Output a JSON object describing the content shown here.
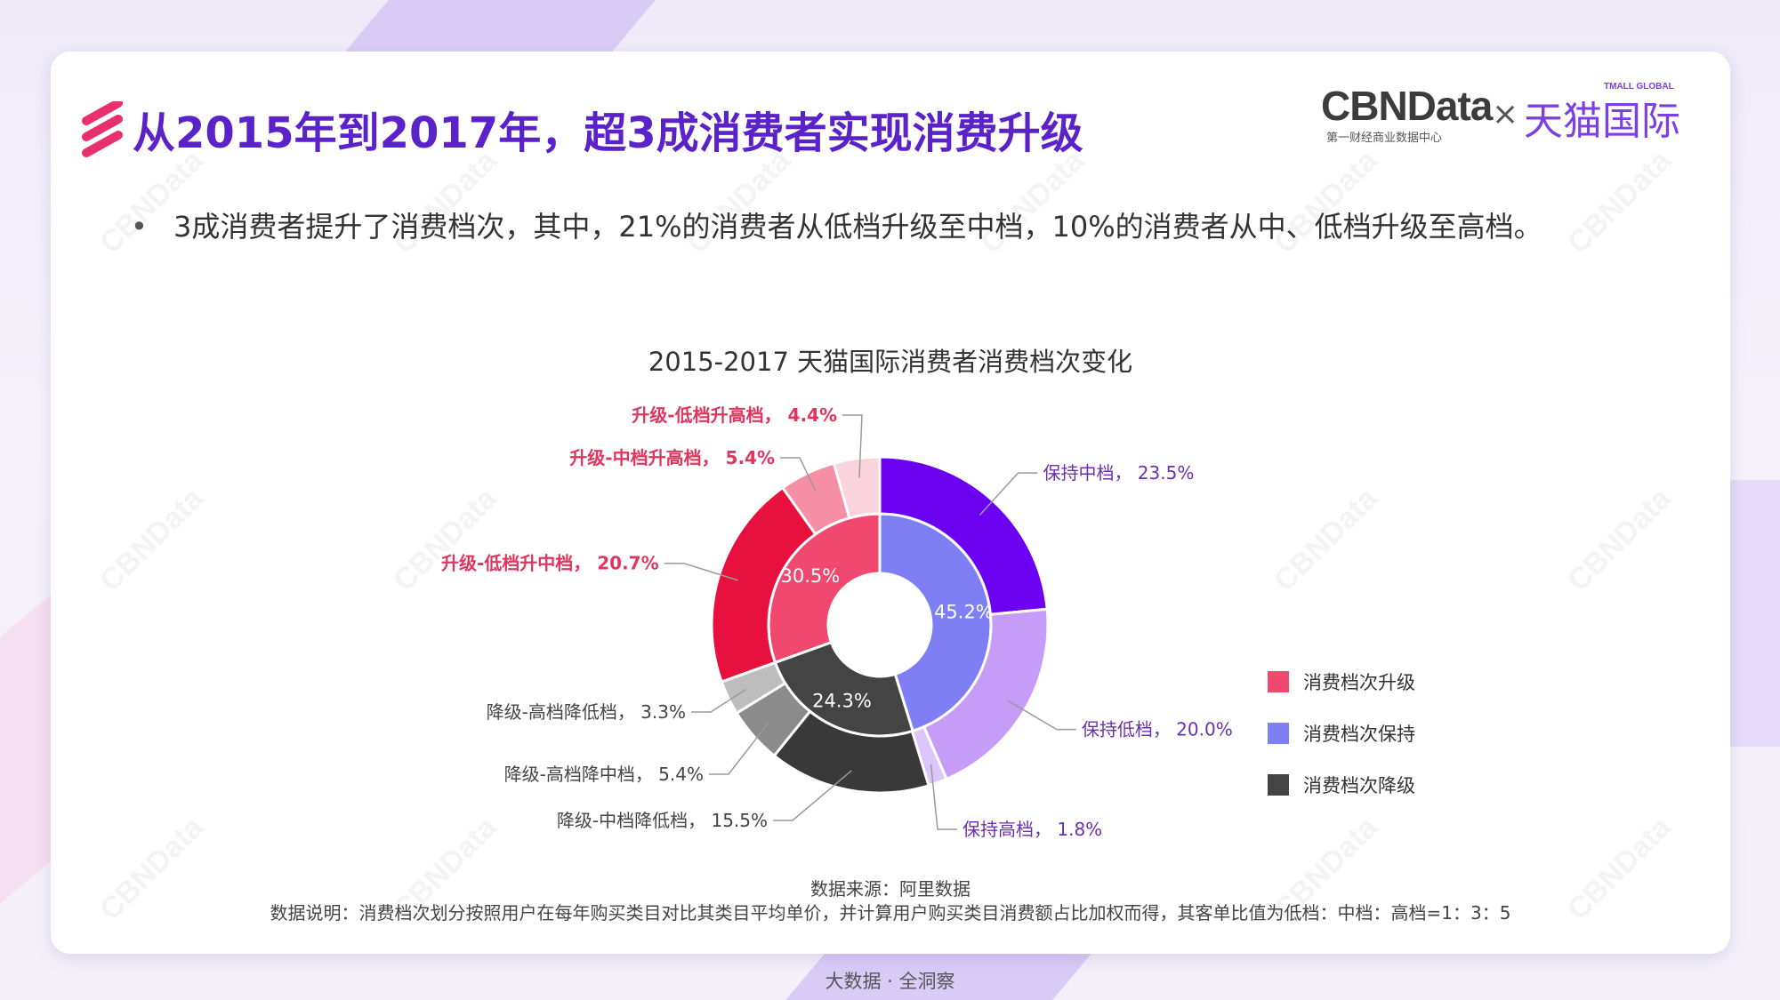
{
  "header": {
    "title": "从2015年到2017年，超3成消费者实现消费升级",
    "brand_cbn": "CBNData",
    "brand_cbn_sub": "第一财经商业数据中心",
    "brand_sep": "×",
    "brand_tmall": "天猫国际",
    "brand_tmall_sub": "TMALL GLOBAL"
  },
  "bullet": {
    "marker": "•",
    "text": "3成消费者提升了消费档次，其中，21%的消费者从低档升级至中档，10%的消费者从中、低档升级至高档。"
  },
  "chart_data": {
    "type": "nested-pie",
    "title": "2015-2017 天猫国际消费者消费档次变化",
    "inner_ring": [
      {
        "name": "消费档次升级",
        "value": 30.5,
        "label": "30.5%",
        "color": "#f0486f"
      },
      {
        "name": "消费档次保持",
        "value": 45.2,
        "label": "45.2%",
        "color": "#7f7ff5"
      },
      {
        "name": "消费档次降级",
        "value": 24.3,
        "label": "24.3%",
        "color": "#444444"
      }
    ],
    "outer_ring": [
      {
        "name": "保持中档",
        "value": 23.5,
        "label": "保持中档， 23.5%",
        "color": "#6c00f0",
        "label_color": "#6c2fb0",
        "group": "保持"
      },
      {
        "name": "保持低档",
        "value": 20.0,
        "label": "保持低档， 20.0%",
        "color": "#c69cf9",
        "label_color": "#6c2fb0",
        "group": "保持"
      },
      {
        "name": "保持高档",
        "value": 1.8,
        "label": "保持高档， 1.8%",
        "color": "#dcc5fb",
        "label_color": "#6c2fb0",
        "group": "保持"
      },
      {
        "name": "降级-中档降低档",
        "value": 15.5,
        "label": "降级-中档降低档， 15.5%",
        "color": "#393939",
        "label_color": "#444444",
        "group": "降级"
      },
      {
        "name": "降级-高档降中档",
        "value": 5.4,
        "label": "降级-高档降中档， 5.4%",
        "color": "#8b8b8b",
        "label_color": "#444444",
        "group": "降级"
      },
      {
        "name": "降级-高档降低档",
        "value": 3.3,
        "label": "降级-高档降低档， 3.3%",
        "color": "#bdbdbd",
        "label_color": "#444444",
        "group": "降级"
      },
      {
        "name": "升级-低档升中档",
        "value": 20.7,
        "label": "升级-低档升中档， 20.7%",
        "color": "#e8113d",
        "label_color": "#e0365e",
        "group": "升级"
      },
      {
        "name": "升级-中档升高档",
        "value": 5.4,
        "label": "升级-中档升高档， 5.4%",
        "color": "#f68ea6",
        "label_color": "#e0365e",
        "group": "升级"
      },
      {
        "name": "升级-低档升高档",
        "value": 4.4,
        "label": "升级-低档升高档， 4.4%",
        "color": "#fbd3dc",
        "label_color": "#e0365e",
        "group": "升级"
      }
    ],
    "legend": [
      {
        "label": "消费档次升级",
        "color": "#f0486f"
      },
      {
        "label": "消费档次保持",
        "color": "#7f7ff5"
      },
      {
        "label": "消费档次降级",
        "color": "#444444"
      }
    ]
  },
  "source": "数据来源：阿里数据",
  "note": "数据说明：消费档次划分按照用户在每年购买类目对比其类目平均单价，并计算用户购买类目消费额占比加权而得，其客单比值为低档：中档：高档=1：3：5",
  "footer": "大数据 · 全洞察",
  "watermark": "CBNData"
}
